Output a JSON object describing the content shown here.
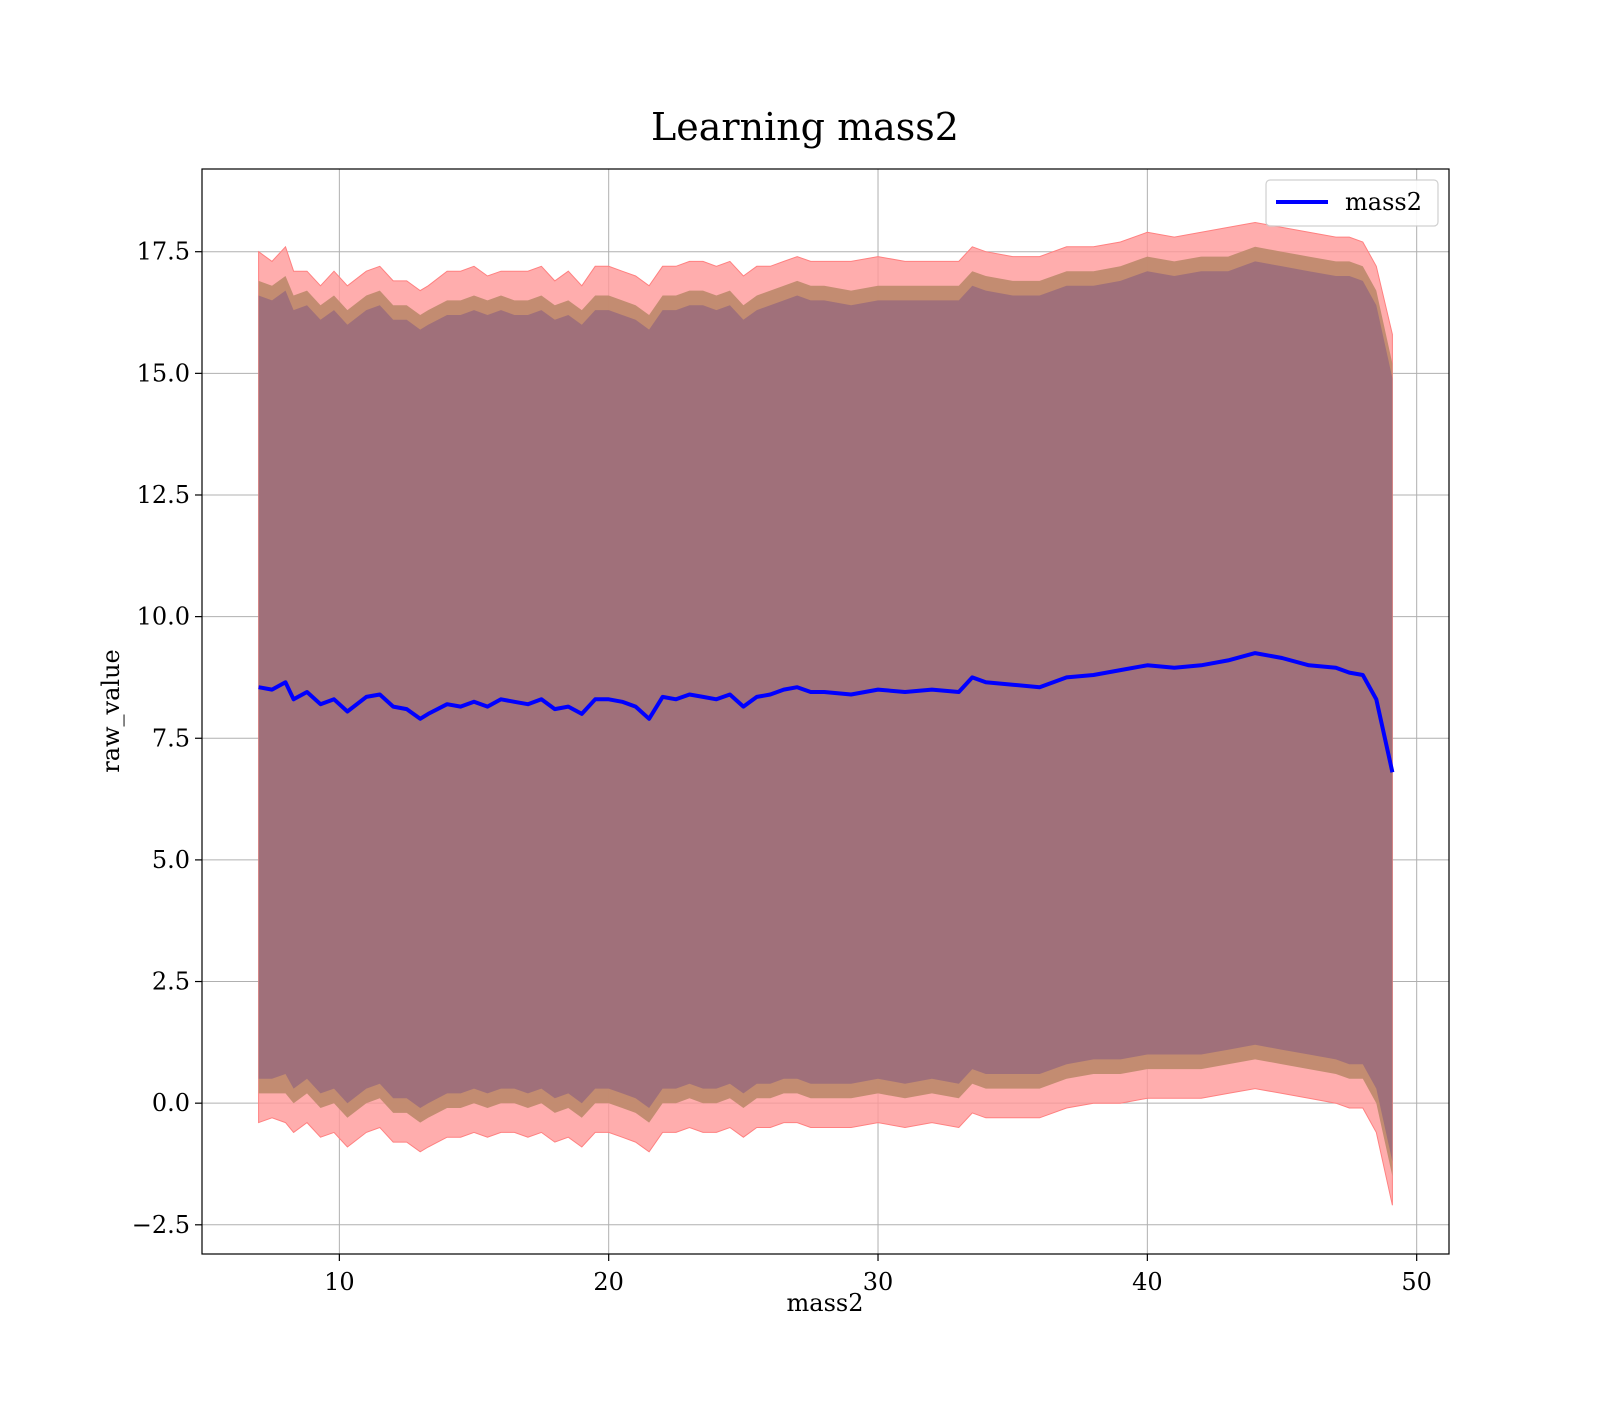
{
  "chart_data": {
    "type": "line",
    "title": "Learning mass2",
    "xlabel": "mass2",
    "ylabel": "raw_value",
    "xlim": [
      4.9,
      51.2
    ],
    "ylim": [
      -3.1,
      19.2
    ],
    "xticks": [
      10,
      20,
      30,
      40,
      50
    ],
    "yticks": [
      -2.5,
      0.0,
      2.5,
      5.0,
      7.5,
      10.0,
      12.5,
      15.0,
      17.5
    ],
    "grid": true,
    "legend": {
      "placement": "top-right",
      "entries": [
        "mass2"
      ]
    },
    "colors": {
      "line": "#0000ff",
      "band_outer": "#ff9999",
      "band_middle": "#c08a6e",
      "band_inner": "#a0707a",
      "grid": "#b0b0b0"
    },
    "series": [
      {
        "name": "mass2",
        "x": [
          7.0,
          7.5,
          8.0,
          8.3,
          8.8,
          9.3,
          9.8,
          10.3,
          11.0,
          11.5,
          12.0,
          12.5,
          13.0,
          13.3,
          14.0,
          14.5,
          15.0,
          15.5,
          16.0,
          16.5,
          17.0,
          17.5,
          18.0,
          18.5,
          19.0,
          19.5,
          20.0,
          20.5,
          21.0,
          21.5,
          22.0,
          22.5,
          23.0,
          23.5,
          24.0,
          24.5,
          25.0,
          25.5,
          26.0,
          26.5,
          27.0,
          27.5,
          28.0,
          29.0,
          30.0,
          31.0,
          32.0,
          33.0,
          33.5,
          34.0,
          35.0,
          36.0,
          37.0,
          38.0,
          39.0,
          40.0,
          41.0,
          42.0,
          43.0,
          44.0,
          45.0,
          46.0,
          47.0,
          47.5,
          48.0,
          48.5,
          49.1
        ],
        "y": [
          8.55,
          8.5,
          8.65,
          8.3,
          8.45,
          8.2,
          8.3,
          8.05,
          8.35,
          8.4,
          8.15,
          8.1,
          7.9,
          8.0,
          8.2,
          8.15,
          8.25,
          8.15,
          8.3,
          8.25,
          8.2,
          8.3,
          8.1,
          8.15,
          8.0,
          8.3,
          8.3,
          8.25,
          8.15,
          7.9,
          8.35,
          8.3,
          8.4,
          8.35,
          8.3,
          8.4,
          8.15,
          8.35,
          8.4,
          8.5,
          8.55,
          8.45,
          8.45,
          8.4,
          8.5,
          8.45,
          8.5,
          8.45,
          8.75,
          8.65,
          8.6,
          8.55,
          8.75,
          8.8,
          8.9,
          9.0,
          8.95,
          9.0,
          9.1,
          9.25,
          9.15,
          9.0,
          8.95,
          8.85,
          8.8,
          8.3,
          6.8
        ],
        "band_outer_upper": [
          17.5,
          17.3,
          17.6,
          17.1,
          17.1,
          16.8,
          17.1,
          16.8,
          17.1,
          17.2,
          16.9,
          16.9,
          16.7,
          16.8,
          17.1,
          17.1,
          17.2,
          17.0,
          17.1,
          17.1,
          17.1,
          17.2,
          16.9,
          17.1,
          16.8,
          17.2,
          17.2,
          17.1,
          17.0,
          16.8,
          17.2,
          17.2,
          17.3,
          17.3,
          17.2,
          17.3,
          17.0,
          17.2,
          17.2,
          17.3,
          17.4,
          17.3,
          17.3,
          17.3,
          17.4,
          17.3,
          17.3,
          17.3,
          17.6,
          17.5,
          17.4,
          17.4,
          17.6,
          17.6,
          17.7,
          17.9,
          17.8,
          17.9,
          18.0,
          18.1,
          18.0,
          17.9,
          17.8,
          17.8,
          17.7,
          17.2,
          15.8
        ],
        "band_outer_lower": [
          -0.4,
          -0.3,
          -0.4,
          -0.6,
          -0.4,
          -0.7,
          -0.6,
          -0.9,
          -0.6,
          -0.5,
          -0.8,
          -0.8,
          -1.0,
          -0.9,
          -0.7,
          -0.7,
          -0.6,
          -0.7,
          -0.6,
          -0.6,
          -0.7,
          -0.6,
          -0.8,
          -0.7,
          -0.9,
          -0.6,
          -0.6,
          -0.7,
          -0.8,
          -1.0,
          -0.6,
          -0.6,
          -0.5,
          -0.6,
          -0.6,
          -0.5,
          -0.7,
          -0.5,
          -0.5,
          -0.4,
          -0.4,
          -0.5,
          -0.5,
          -0.5,
          -0.4,
          -0.5,
          -0.4,
          -0.5,
          -0.2,
          -0.3,
          -0.3,
          -0.3,
          -0.1,
          0.0,
          0.0,
          0.1,
          0.1,
          0.1,
          0.2,
          0.3,
          0.2,
          0.1,
          0.0,
          -0.1,
          -0.1,
          -0.6,
          -2.1
        ],
        "band_middle_upper": [
          16.9,
          16.8,
          17.0,
          16.6,
          16.7,
          16.4,
          16.6,
          16.3,
          16.6,
          16.7,
          16.4,
          16.4,
          16.2,
          16.3,
          16.5,
          16.5,
          16.6,
          16.5,
          16.6,
          16.5,
          16.5,
          16.6,
          16.4,
          16.5,
          16.3,
          16.6,
          16.6,
          16.5,
          16.4,
          16.2,
          16.6,
          16.6,
          16.7,
          16.7,
          16.6,
          16.7,
          16.4,
          16.6,
          16.7,
          16.8,
          16.9,
          16.8,
          16.8,
          16.7,
          16.8,
          16.8,
          16.8,
          16.8,
          17.1,
          17.0,
          16.9,
          16.9,
          17.1,
          17.1,
          17.2,
          17.4,
          17.3,
          17.4,
          17.4,
          17.6,
          17.5,
          17.4,
          17.3,
          17.3,
          17.2,
          16.7,
          15.2
        ],
        "band_middle_lower": [
          0.2,
          0.2,
          0.2,
          0.0,
          0.2,
          -0.1,
          0.0,
          -0.3,
          0.0,
          0.1,
          -0.2,
          -0.2,
          -0.4,
          -0.3,
          -0.1,
          -0.1,
          0.0,
          -0.1,
          0.0,
          0.0,
          -0.1,
          0.0,
          -0.2,
          -0.1,
          -0.3,
          0.0,
          0.0,
          -0.1,
          -0.2,
          -0.4,
          0.0,
          0.0,
          0.1,
          0.0,
          0.0,
          0.1,
          -0.1,
          0.1,
          0.1,
          0.2,
          0.2,
          0.1,
          0.1,
          0.1,
          0.2,
          0.1,
          0.2,
          0.1,
          0.4,
          0.3,
          0.3,
          0.3,
          0.5,
          0.6,
          0.6,
          0.7,
          0.7,
          0.7,
          0.8,
          0.9,
          0.8,
          0.7,
          0.6,
          0.5,
          0.5,
          0.0,
          -1.5
        ],
        "band_inner_upper": [
          16.6,
          16.5,
          16.7,
          16.3,
          16.4,
          16.1,
          16.3,
          16.0,
          16.3,
          16.4,
          16.1,
          16.1,
          15.9,
          16.0,
          16.2,
          16.2,
          16.3,
          16.2,
          16.3,
          16.2,
          16.2,
          16.3,
          16.1,
          16.2,
          16.0,
          16.3,
          16.3,
          16.2,
          16.1,
          15.9,
          16.3,
          16.3,
          16.4,
          16.4,
          16.3,
          16.4,
          16.1,
          16.3,
          16.4,
          16.5,
          16.6,
          16.5,
          16.5,
          16.4,
          16.5,
          16.5,
          16.5,
          16.5,
          16.8,
          16.7,
          16.6,
          16.6,
          16.8,
          16.8,
          16.9,
          17.1,
          17.0,
          17.1,
          17.1,
          17.3,
          17.2,
          17.1,
          17.0,
          17.0,
          16.9,
          16.4,
          14.9
        ],
        "band_inner_lower": [
          0.5,
          0.5,
          0.6,
          0.3,
          0.5,
          0.2,
          0.3,
          0.0,
          0.3,
          0.4,
          0.1,
          0.1,
          -0.1,
          0.0,
          0.2,
          0.2,
          0.3,
          0.2,
          0.3,
          0.3,
          0.2,
          0.3,
          0.1,
          0.2,
          0.0,
          0.3,
          0.3,
          0.2,
          0.1,
          -0.1,
          0.3,
          0.3,
          0.4,
          0.3,
          0.3,
          0.4,
          0.2,
          0.4,
          0.4,
          0.5,
          0.5,
          0.4,
          0.4,
          0.4,
          0.5,
          0.4,
          0.5,
          0.4,
          0.7,
          0.6,
          0.6,
          0.6,
          0.8,
          0.9,
          0.9,
          1.0,
          1.0,
          1.0,
          1.1,
          1.2,
          1.1,
          1.0,
          0.9,
          0.8,
          0.8,
          0.3,
          -1.2
        ]
      }
    ]
  }
}
